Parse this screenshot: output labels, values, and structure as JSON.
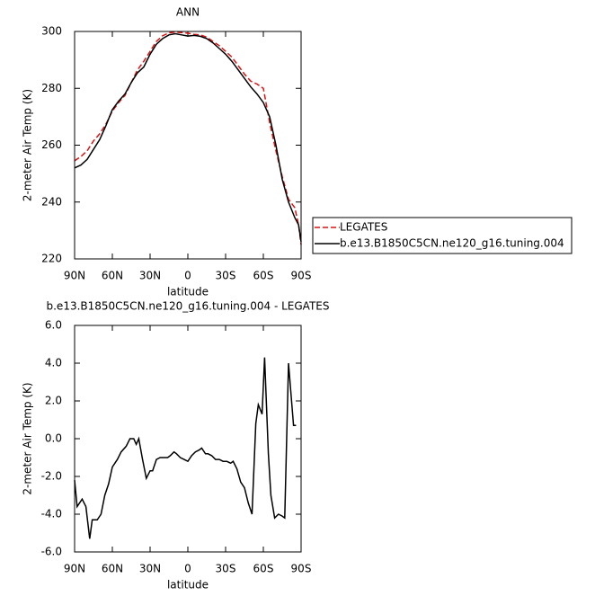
{
  "chart_data": [
    {
      "type": "line",
      "title": "ANN",
      "xlabel": "latitude",
      "ylabel": "2-meter Air Temp (K)",
      "x": [
        90,
        85,
        80,
        75,
        70,
        65,
        60,
        55,
        50,
        45,
        40,
        35,
        30,
        25,
        20,
        15,
        10,
        5,
        0,
        -5,
        -10,
        -15,
        -20,
        -25,
        -30,
        -35,
        -40,
        -45,
        -50,
        -55,
        -60,
        -65,
        -70,
        -75,
        -80,
        -85,
        -88,
        -90
      ],
      "series": [
        {
          "name": "LEGATES",
          "color": "#dd1111",
          "linestyle": "dashed",
          "values": [
            254.5,
            256,
            258,
            261.5,
            264,
            267.5,
            272,
            275,
            277.5,
            282,
            286.5,
            289.5,
            293,
            296.5,
            298.5,
            299.5,
            299.8,
            299.6,
            299.4,
            299,
            298.8,
            298,
            296.5,
            295,
            293,
            291,
            288,
            285,
            282.5,
            281.5,
            280,
            268,
            258,
            249,
            241,
            238,
            232,
            225
          ]
        },
        {
          "name": "b.e13.B1850C5CN.ne120_g16.tuning.004",
          "color": "#000000",
          "linestyle": "solid",
          "values": [
            252,
            253,
            255,
            258.5,
            262,
            267,
            272.5,
            275.5,
            278,
            282,
            285.5,
            287.5,
            292,
            295.5,
            297.5,
            298.8,
            299.2,
            298.8,
            298.4,
            298.6,
            298.3,
            297.5,
            296,
            294,
            292,
            289.5,
            286.5,
            283.5,
            280.5,
            278,
            275,
            270,
            260,
            248,
            240,
            234.5,
            232,
            226
          ]
        }
      ],
      "xlim": [
        90,
        -90
      ],
      "xticks": [
        {
          "value": 90,
          "label": "90N"
        },
        {
          "value": 60,
          "label": "60N"
        },
        {
          "value": 30,
          "label": "30N"
        },
        0,
        {
          "value": -30,
          "label": "30S"
        },
        {
          "value": -60,
          "label": "60S"
        },
        {
          "value": -90,
          "label": "90S"
        }
      ],
      "ylim": [
        220,
        300
      ],
      "yticks": [
        220,
        240,
        260,
        280,
        300
      ],
      "legend": "right"
    },
    {
      "type": "line",
      "title": "b.e13.B1850C5CN.ne120_g16.tuning.004 - LEGATES",
      "xlabel": "latitude",
      "ylabel": "2-meter Air Temp (K)",
      "x": [
        90,
        88,
        84,
        81,
        78,
        76,
        72,
        69,
        66,
        63,
        60,
        56,
        53,
        49,
        46,
        43,
        41,
        39,
        36,
        33,
        30,
        28,
        25,
        22,
        19,
        16,
        14,
        11,
        9,
        6,
        3,
        0,
        -3,
        -6,
        -9,
        -11,
        -14,
        -16,
        -19,
        -22,
        -25,
        -28,
        -31,
        -34,
        -36,
        -39,
        -42,
        -45,
        -48,
        -51,
        -54,
        -56,
        -59,
        -61,
        -64,
        -66,
        -69,
        -72,
        -75,
        -77,
        -80,
        -84,
        -86
      ],
      "values": [
        -2.2,
        -3.6,
        -3.2,
        -3.6,
        -5.3,
        -4.3,
        -4.3,
        -4,
        -3,
        -2.4,
        -1.5,
        -1.1,
        -0.7,
        -0.4,
        0,
        0,
        -0.3,
        0,
        -1.1,
        -2.1,
        -1.7,
        -1.7,
        -1.1,
        -1,
        -1,
        -1,
        -0.9,
        -0.7,
        -0.8,
        -1,
        -1.1,
        -1.2,
        -0.9,
        -0.7,
        -0.6,
        -0.5,
        -0.8,
        -0.8,
        -0.9,
        -1.1,
        -1.1,
        -1.2,
        -1.2,
        -1.3,
        -1.2,
        -1.6,
        -2.3,
        -2.6,
        -3.4,
        -4,
        0.8,
        1.8,
        1.3,
        4.3,
        -0.8,
        -3,
        -4.2,
        -4,
        -4.1,
        -4.2,
        4,
        0.7,
        0.7
      ],
      "color": "#000000",
      "xlim": [
        90,
        -90
      ],
      "xticks": [
        {
          "value": 90,
          "label": "90N"
        },
        {
          "value": 60,
          "label": "60N"
        },
        {
          "value": 30,
          "label": "30N"
        },
        0,
        {
          "value": -30,
          "label": "30S"
        },
        {
          "value": -60,
          "label": "60S"
        },
        {
          "value": -90,
          "label": "90S"
        }
      ],
      "ylim": [
        -6,
        6
      ],
      "yticks": [
        {
          "value": -6,
          "label": "-6.0"
        },
        {
          "value": -4,
          "label": "-4.0"
        },
        {
          "value": -2,
          "label": "-2.0"
        },
        {
          "value": 0,
          "label": "0.0"
        },
        {
          "value": 2,
          "label": "2.0"
        },
        {
          "value": 4,
          "label": "4.0"
        },
        {
          "value": 6,
          "label": "6.0"
        }
      ]
    }
  ]
}
